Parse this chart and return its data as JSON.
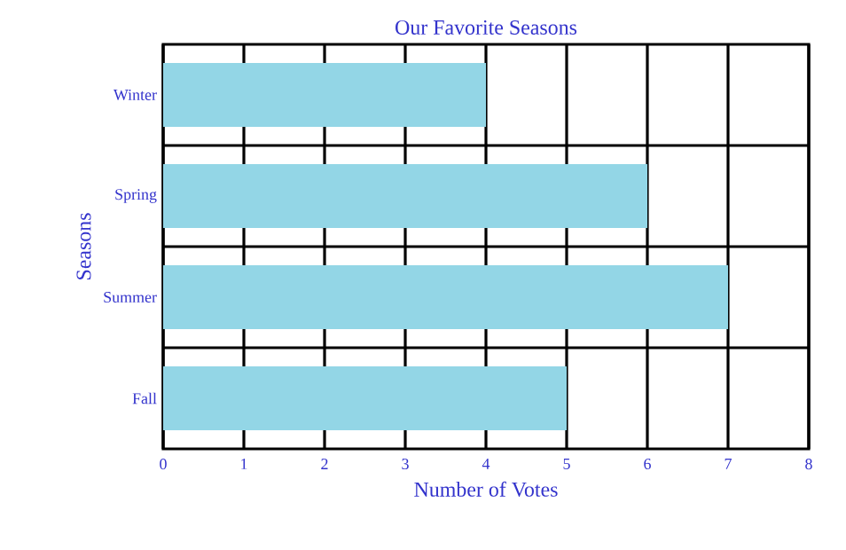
{
  "chart_data": {
    "type": "bar",
    "orientation": "horizontal",
    "title": "Our Favorite Seasons",
    "xlabel": "Number of Votes",
    "ylabel": "Seasons",
    "categories": [
      "Winter",
      "Spring",
      "Summer",
      "Fall"
    ],
    "values": [
      4,
      6,
      7,
      5
    ],
    "color": "#93d6e6",
    "xlim": [
      0,
      8
    ],
    "xticks": [
      0,
      1,
      2,
      3,
      4,
      5,
      6,
      7,
      8
    ],
    "grid": true
  }
}
